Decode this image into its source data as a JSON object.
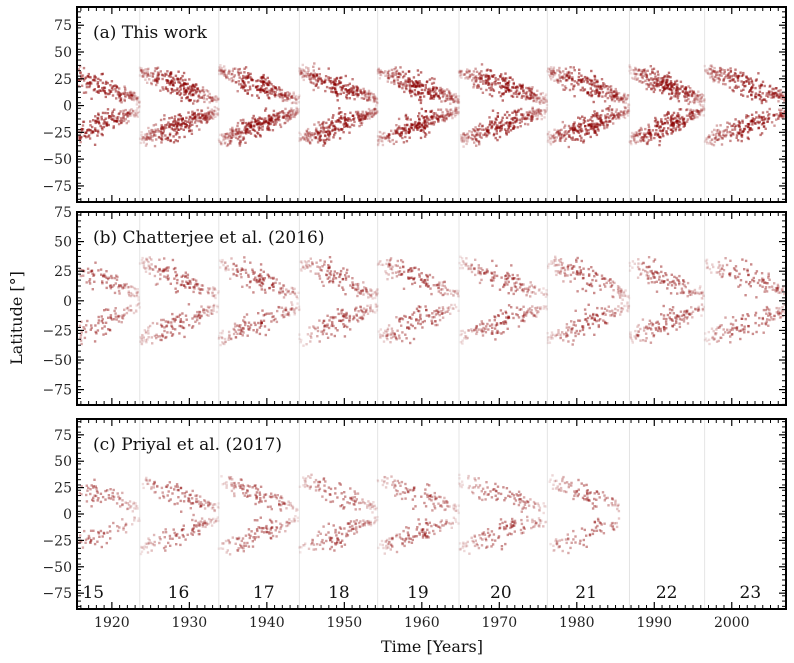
{
  "chart_data": {
    "type": "scatter",
    "xlabel": "Time [Years]",
    "ylabel": "Latitude [°]",
    "xlim": [
      1915.5,
      2007
    ],
    "x_ticks": [
      "1920",
      "1930",
      "1940",
      "1950",
      "1960",
      "1970",
      "1980",
      "1990",
      "2000"
    ],
    "point_color": "#8b0000",
    "cycle_minima": [
      1923.6,
      1933.8,
      1944.2,
      1954.3,
      1964.8,
      1976.2,
      1986.8,
      1996.5
    ],
    "panels": [
      {
        "title": "(a) This work",
        "ylim": [
          -90,
          92
        ],
        "y_ticks": [
          "75",
          "50",
          "25",
          "0",
          "−25",
          "−50",
          "−75"
        ],
        "density": 1.0,
        "end_year": 2007
      },
      {
        "title": "(b) Chatterjee et al. (2016)",
        "ylim": [
          -88,
          75
        ],
        "y_ticks": [
          "75",
          "50",
          "25",
          "0",
          "−25",
          "−50",
          "−75"
        ],
        "density": 0.5,
        "end_year": 2007
      },
      {
        "title": "(c) Priyal et al. (2017)",
        "ylim": [
          -90,
          90
        ],
        "y_ticks": [
          "75",
          "50",
          "25",
          "0",
          "−25",
          "−50",
          "−75"
        ],
        "density": 0.4,
        "end_year": 1985.5
      }
    ],
    "cycles": [
      {
        "label": "15",
        "start": 1913.6,
        "end": 1923.6,
        "center": 1917.6
      },
      {
        "label": "16",
        "start": 1923.6,
        "end": 1933.8,
        "center": 1928.6
      },
      {
        "label": "17",
        "start": 1933.8,
        "end": 1944.2,
        "center": 1939.6
      },
      {
        "label": "18",
        "start": 1944.2,
        "end": 1954.3,
        "center": 1949.3
      },
      {
        "label": "19",
        "start": 1954.3,
        "end": 1964.8,
        "center": 1959.5
      },
      {
        "label": "20",
        "start": 1964.8,
        "end": 1976.2,
        "center": 1970.2
      },
      {
        "label": "21",
        "start": 1976.2,
        "end": 1986.8,
        "center": 1981.2
      },
      {
        "label": "22",
        "start": 1986.8,
        "end": 1996.5,
        "center": 1991.6
      },
      {
        "label": "23",
        "start": 1996.5,
        "end": 2008.0,
        "center": 2002.4
      }
    ]
  }
}
